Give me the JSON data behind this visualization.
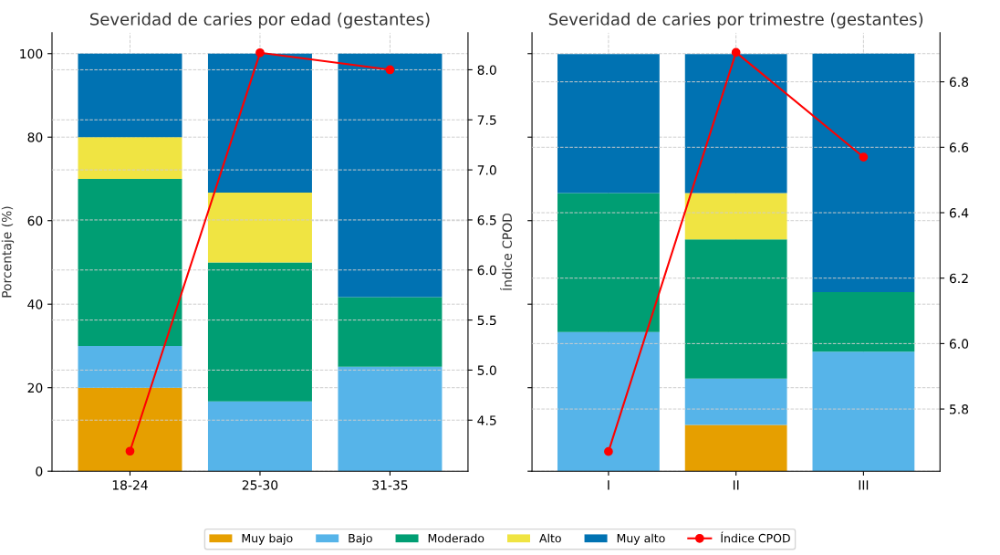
{
  "chart_data": [
    {
      "type": "bar",
      "title": "Severidad de caries por edad (gestantes)",
      "ylabel": "Porcentaje (%)",
      "y2label": "Índice CPOD",
      "categories": [
        "18-24",
        "25-30",
        "31-35"
      ],
      "stacked": true,
      "ylim": [
        0,
        105
      ],
      "yticks": [
        0,
        20,
        40,
        60,
        80,
        100
      ],
      "y2lim": [
        3.99,
        8.37
      ],
      "y2ticks": [
        {
          "value": 4.5,
          "label": "4.5"
        },
        {
          "value": 5.0,
          "label": "5.0"
        },
        {
          "value": 5.5,
          "label": "5.5"
        },
        {
          "value": 6.0,
          "label": "6.0"
        },
        {
          "value": 6.5,
          "label": "6.5"
        },
        {
          "value": 7.0,
          "label": "7.0"
        },
        {
          "value": 7.5,
          "label": "7.5"
        },
        {
          "value": 8.0,
          "label": "8.0"
        }
      ],
      "grid": true,
      "legend": "bottom",
      "series": [
        {
          "name": "Muy bajo",
          "color": "#e69f00",
          "values": [
            20,
            0,
            0
          ]
        },
        {
          "name": "Bajo",
          "color": "#56b4e9",
          "values": [
            10,
            16.7,
            25
          ]
        },
        {
          "name": "Moderado",
          "color": "#009e73",
          "values": [
            40,
            33.3,
            16.7
          ]
        },
        {
          "name": "Alto",
          "color": "#f0e442",
          "values": [
            10,
            16.7,
            0
          ]
        },
        {
          "name": "Muy alto",
          "color": "#0072b2",
          "values": [
            20,
            33.3,
            58.3
          ]
        },
        {
          "name": "Índice CPOD",
          "type": "line",
          "axis": "y2",
          "color": "#ff0000",
          "marker": "circle",
          "values": [
            4.19,
            8.17,
            8.0
          ]
        }
      ]
    },
    {
      "type": "bar",
      "title": "Severidad de caries por trimestre (gestantes)",
      "categories": [
        "I",
        "II",
        "III"
      ],
      "stacked": true,
      "ylim": [
        0,
        105
      ],
      "yticks": [
        0,
        20,
        40,
        60,
        80,
        100
      ],
      "tick_labels": "x",
      "y2lim": [
        5.61,
        6.95
      ],
      "y2ticks": [
        {
          "value": 5.8,
          "label": "5.8"
        },
        {
          "value": 6.0,
          "label": "6.0"
        },
        {
          "value": 6.2,
          "label": "6.2"
        },
        {
          "value": 6.4,
          "label": "6.4"
        },
        {
          "value": 6.6,
          "label": "6.6"
        },
        {
          "value": 6.8,
          "label": "6.8"
        }
      ],
      "grid": true,
      "series": [
        {
          "color": "#e69f00",
          "values": [
            0,
            11.1,
            0
          ]
        },
        {
          "color": "#56b4e9",
          "values": [
            33.3,
            11.1,
            28.6
          ]
        },
        {
          "color": "#009e73",
          "values": [
            33.3,
            33.3,
            14.3
          ]
        },
        {
          "color": "#f0e442",
          "values": [
            0,
            11.1,
            0
          ]
        },
        {
          "color": "#0072b2",
          "values": [
            33.3,
            33.3,
            57.1
          ]
        },
        {
          "type": "line",
          "axis": "y2",
          "color": "#ff0000",
          "marker": "circle",
          "values": [
            5.67,
            6.89,
            6.57
          ]
        }
      ]
    }
  ]
}
